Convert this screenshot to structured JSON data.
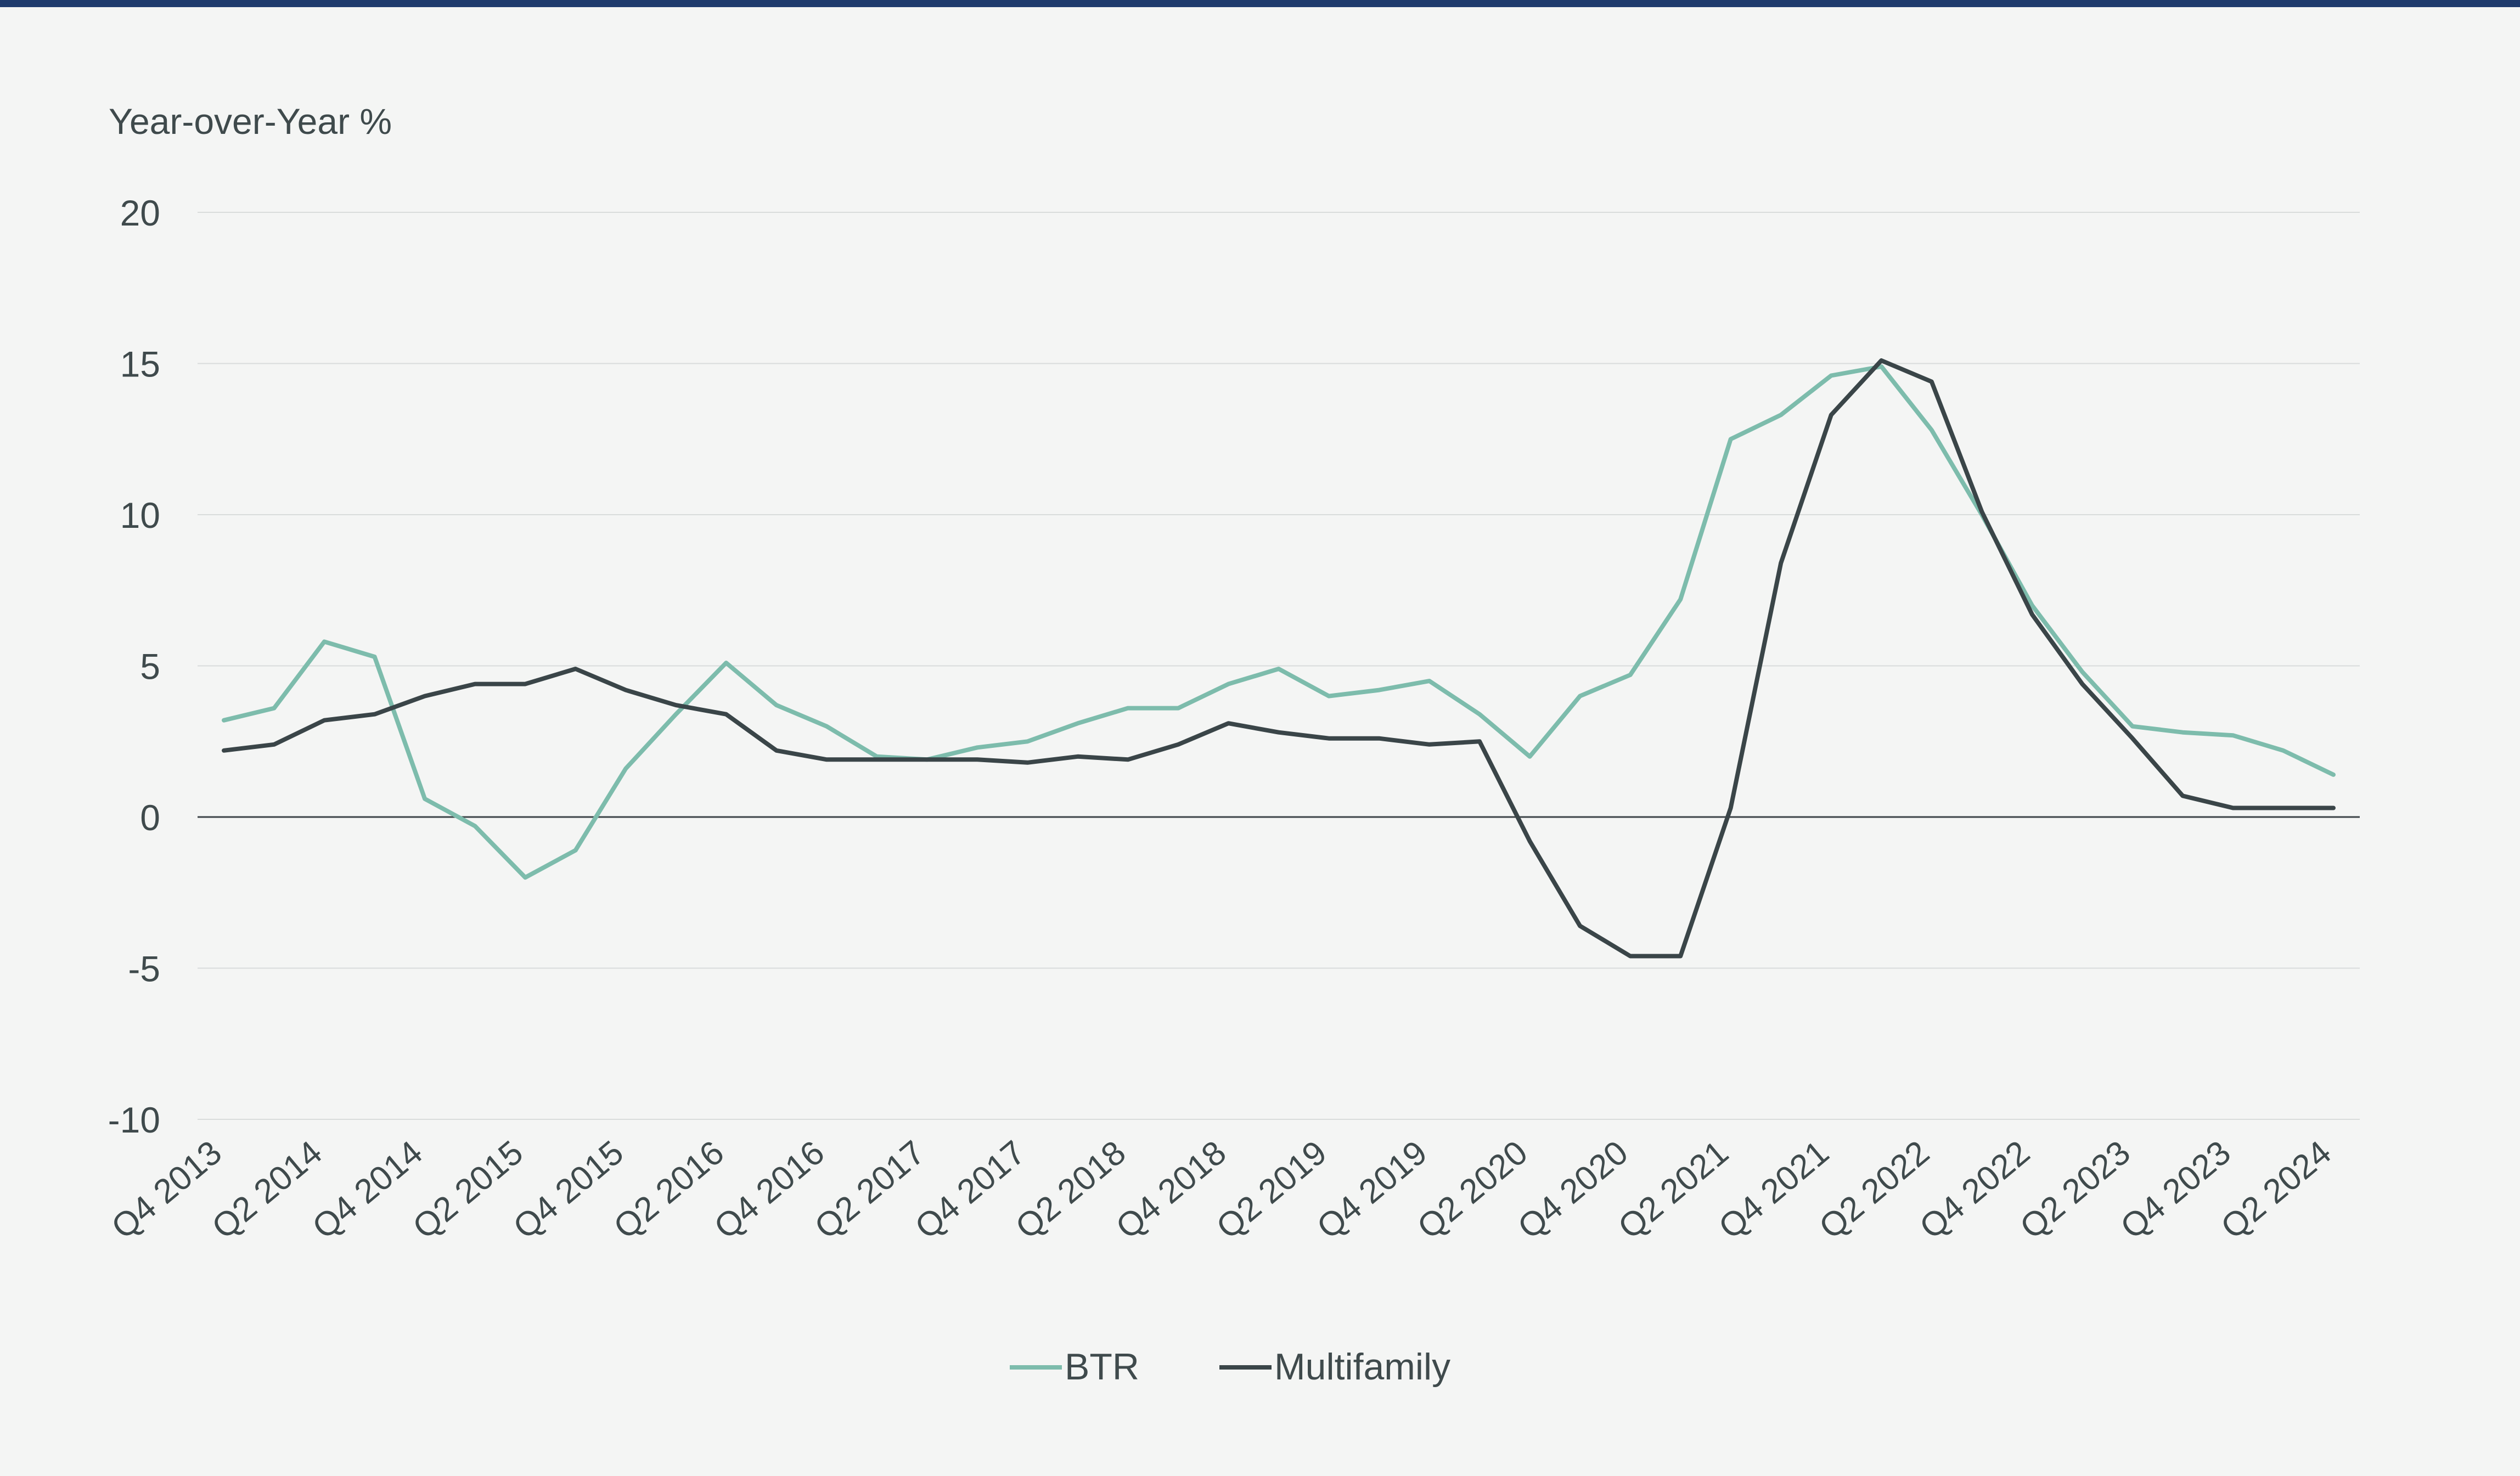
{
  "chart_data": {
    "type": "line",
    "title": "",
    "ylabel": "Year-over-Year %",
    "xlabel": "",
    "ylim": [
      -10,
      20
    ],
    "yticks": [
      20,
      15,
      10,
      5,
      0,
      -5,
      -10
    ],
    "grid": true,
    "legend_position": "bottom-center",
    "x": [
      "Q4 2013",
      "Q1 2014",
      "Q2 2014",
      "Q3 2014",
      "Q4 2014",
      "Q1 2015",
      "Q2 2015",
      "Q3 2015",
      "Q4 2015",
      "Q1 2016",
      "Q2 2016",
      "Q3 2016",
      "Q4 2016",
      "Q1 2017",
      "Q2 2017",
      "Q3 2017",
      "Q4 2017",
      "Q1 2018",
      "Q2 2018",
      "Q3 2018",
      "Q4 2018",
      "Q1 2019",
      "Q2 2019",
      "Q3 2019",
      "Q4 2019",
      "Q1 2020",
      "Q2 2020",
      "Q3 2020",
      "Q4 2020",
      "Q1 2021",
      "Q2 2021",
      "Q3 2021",
      "Q4 2021",
      "Q1 2022",
      "Q2 2022",
      "Q3 2022",
      "Q4 2022",
      "Q1 2023",
      "Q2 2023",
      "Q3 2023",
      "Q4 2023",
      "Q1 2024",
      "Q2 2024"
    ],
    "tick_labels": [
      "Q4 2013",
      "Q2 2014",
      "Q4 2014",
      "Q2 2015",
      "Q4 2015",
      "Q2 2016",
      "Q4 2016",
      "Q2 2017",
      "Q4 2017",
      "Q2 2018",
      "Q4 2018",
      "Q2 2019",
      "Q4 2019",
      "Q2 2020",
      "Q4 2020",
      "Q2 2021",
      "Q4 2021",
      "Q2 2022",
      "Q4 2022",
      "Q2 2023",
      "Q4 2023",
      "Q2 2024"
    ],
    "series": [
      {
        "name": "BTR",
        "color": "#7dbcac",
        "values": [
          3.2,
          3.6,
          5.8,
          5.3,
          0.6,
          -0.3,
          -2.0,
          -1.1,
          1.6,
          3.4,
          5.1,
          3.7,
          3.0,
          2.0,
          1.9,
          2.3,
          2.5,
          3.1,
          3.6,
          3.6,
          4.4,
          4.9,
          4.0,
          4.2,
          4.5,
          3.4,
          2.0,
          4.0,
          4.7,
          7.2,
          12.5,
          13.3,
          14.6,
          14.9,
          12.8,
          10.0,
          7.0,
          4.8,
          3.0,
          2.8,
          2.7,
          2.2,
          1.4
        ]
      },
      {
        "name": "Multifamily",
        "color": "#3a4548",
        "values": [
          2.2,
          2.4,
          3.2,
          3.4,
          4.0,
          4.4,
          4.4,
          4.9,
          4.2,
          3.7,
          3.4,
          2.2,
          1.9,
          1.9,
          1.9,
          1.9,
          1.8,
          2.0,
          1.9,
          2.4,
          3.1,
          2.8,
          2.6,
          2.6,
          2.4,
          2.5,
          -0.8,
          -3.6,
          -4.6,
          -4.6,
          0.3,
          8.4,
          13.3,
          15.1,
          14.4,
          10.1,
          6.7,
          4.4,
          2.6,
          0.7,
          0.3,
          0.3,
          0.3
        ]
      }
    ]
  },
  "colors": {
    "top_border": "#1f3b6d",
    "background": "#f4f5f4",
    "grid": "#d9dcdb",
    "zero_line": "#3d4447",
    "text": "#3f4a4c"
  }
}
